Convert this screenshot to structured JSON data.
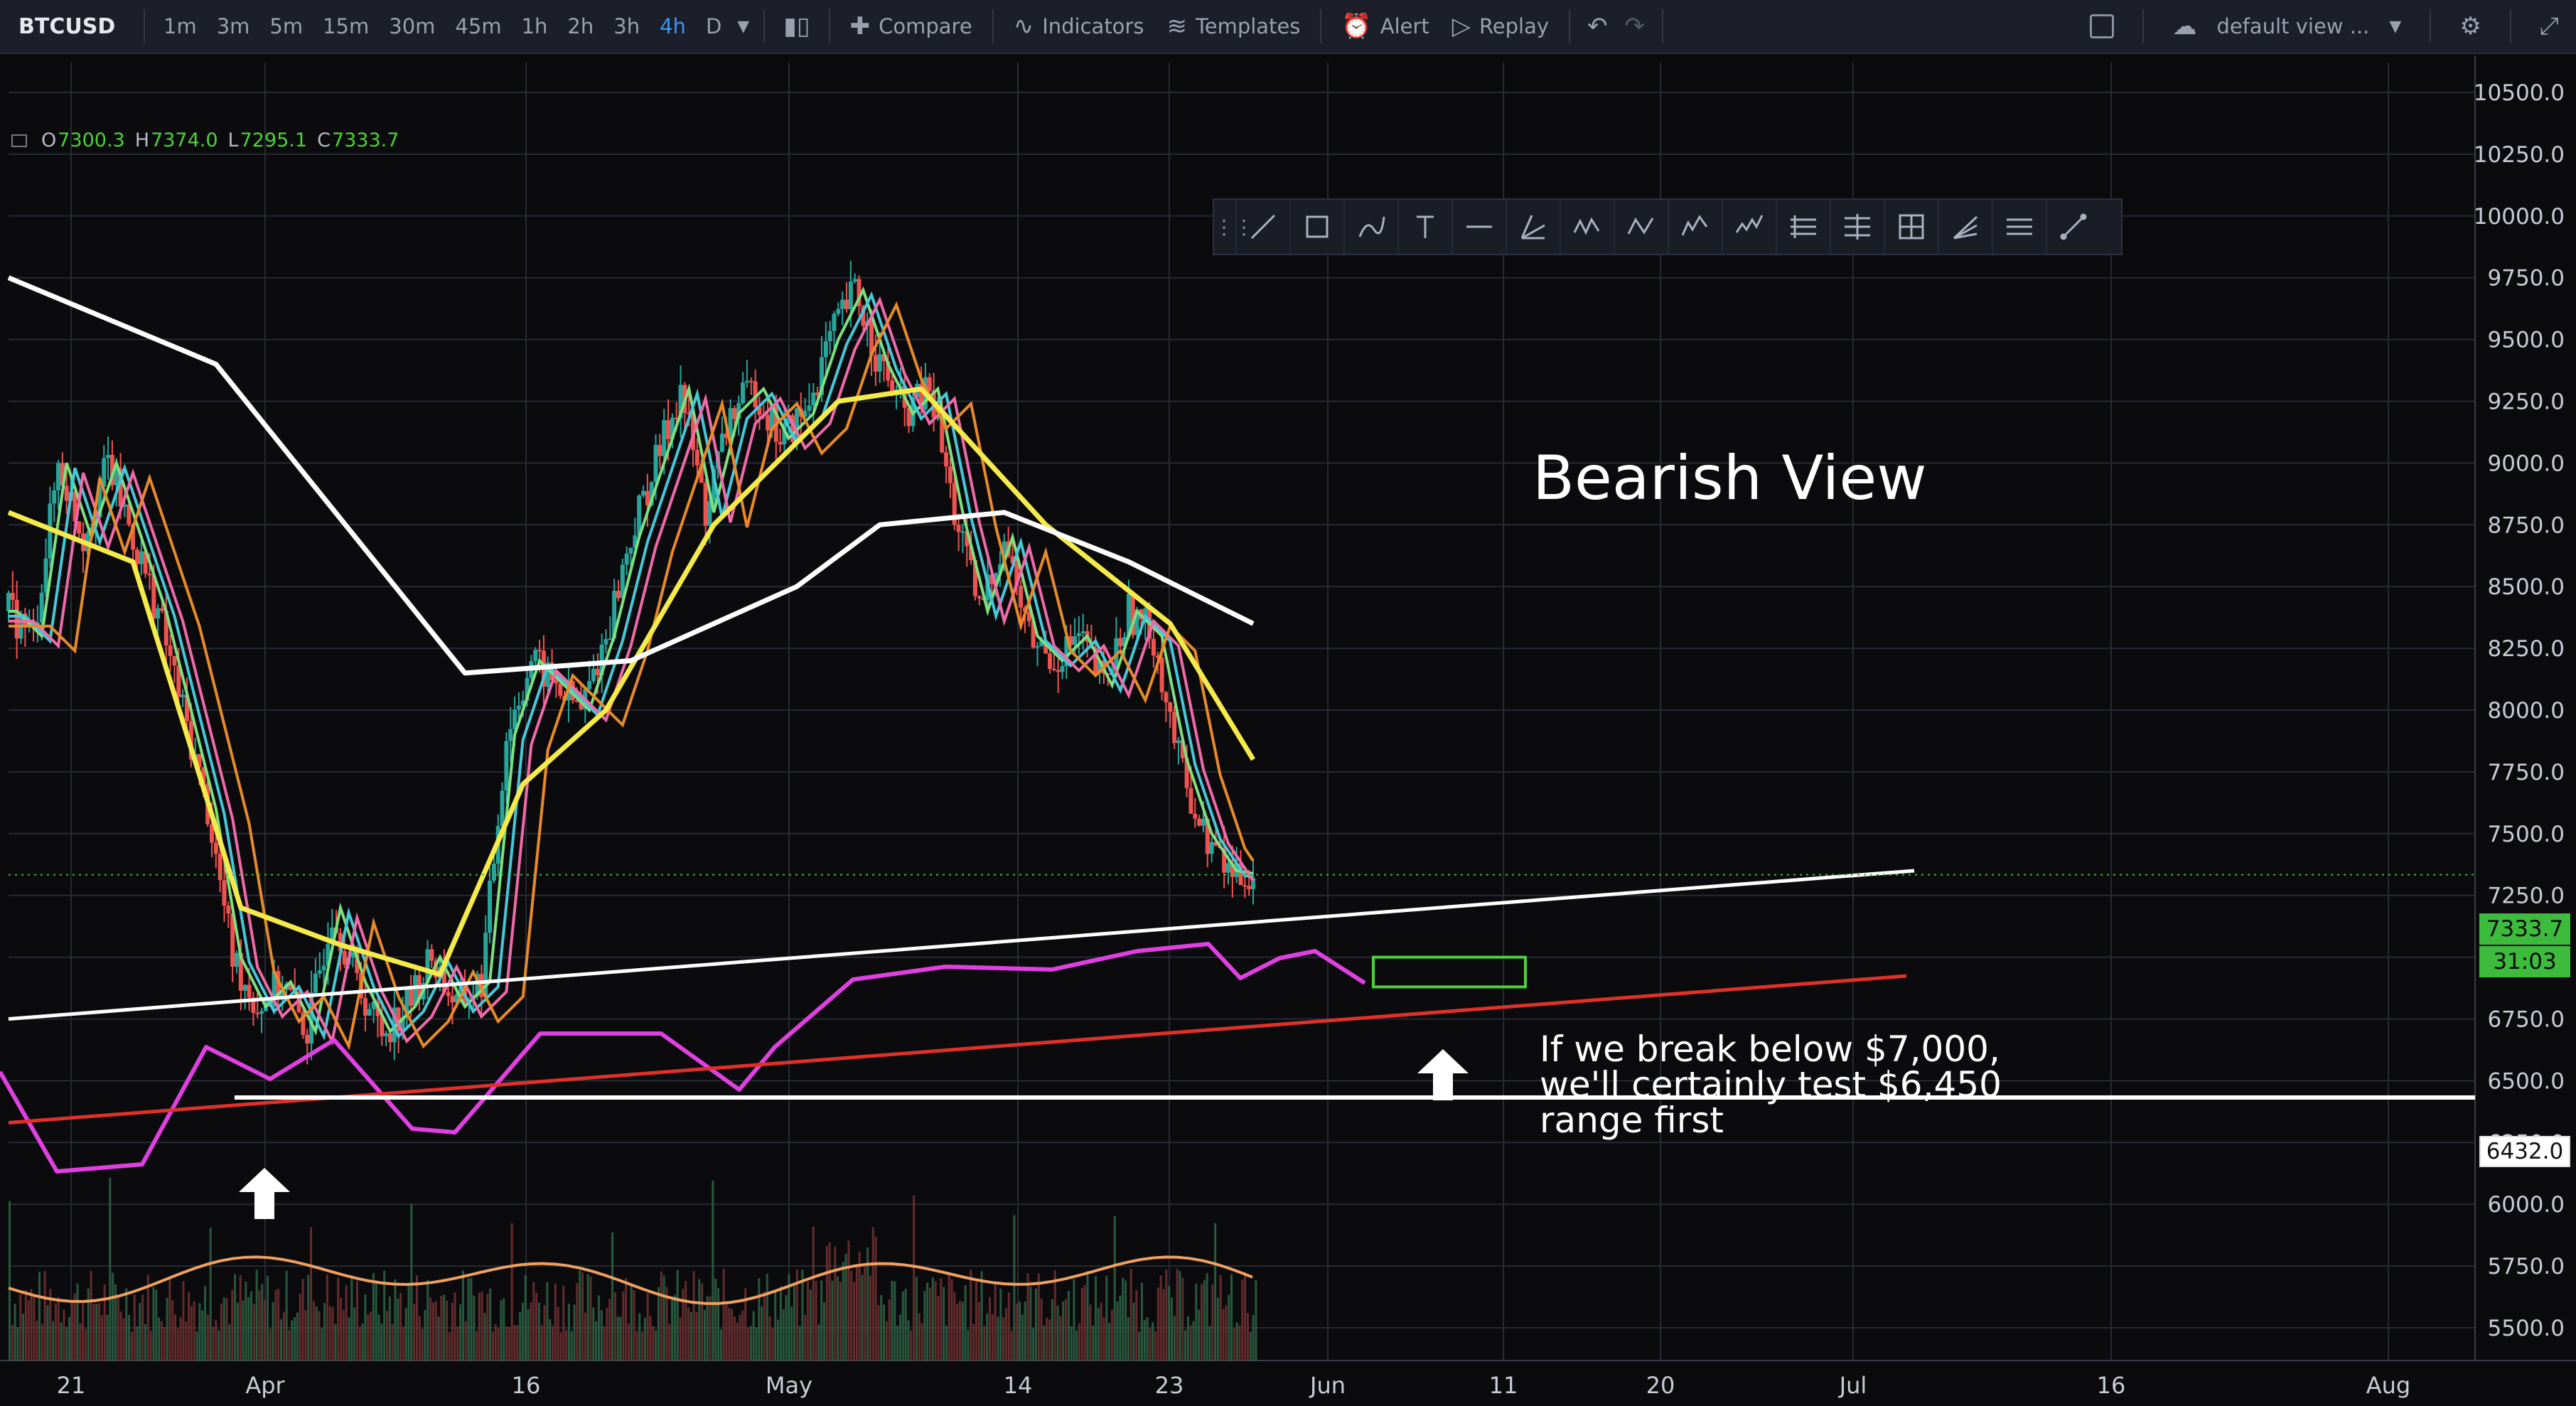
{
  "toolbar": {
    "symbol": "BTCUSD",
    "timeframes": [
      "1m",
      "3m",
      "5m",
      "15m",
      "30m",
      "45m",
      "1h",
      "2h",
      "3h",
      "4h",
      "D"
    ],
    "active_timeframe": "4h",
    "compare_label": "Compare",
    "indicators_label": "Indicators",
    "templates_label": "Templates",
    "alert_label": "Alert",
    "replay_label": "Replay",
    "view_name": "default view ...",
    "icons": [
      "candles-icon",
      "compare-icon",
      "indicators-icon",
      "templates-icon",
      "alert-icon",
      "replay-icon",
      "undo-icon",
      "redo-icon",
      "gear-icon",
      "fullscreen-icon"
    ]
  },
  "ohlc": {
    "open_label": "O",
    "open": "7300.3",
    "high_label": "H",
    "high": "7374.0",
    "low_label": "L",
    "low": "7295.1",
    "close_label": "C",
    "close": "7333.7",
    "color": "#4cd137"
  },
  "drawing_tools": [
    "trend-line",
    "rectangle",
    "brush",
    "text",
    "horizontal-line",
    "fib-fan",
    "xabcd-pattern",
    "abcd-pattern",
    "elliott-wave",
    "three-drives",
    "pitchfork",
    "fib-retracement",
    "measure",
    "gann-fan",
    "fib-extension",
    "ruler"
  ],
  "annotations": {
    "title": "Bearish View",
    "note": "If we break below $7,000,\nwe'll certainly test $6,450\nrange first"
  },
  "price_tags": {
    "last_price": "7333.7",
    "countdown": "31:03",
    "level": "6432.0"
  },
  "colors": {
    "background": "#0b0b0e",
    "grid": "#262a33",
    "ma_white": "#ffffff",
    "ma_yellow": "#f5ea4a",
    "ma_orange": "#e88a2a",
    "ma_pink": "#f06aa8",
    "ma_cyan": "#45c8d8",
    "ma_green": "#7ee07e",
    "oscillator": "#e040e0",
    "support_red": "#e0302a",
    "up_candle": "#26a69a",
    "down_candle": "#ef5350",
    "highlight_box": "#4cd137",
    "volume_ma": "#f0a060"
  },
  "chart_data": {
    "type": "candlestick",
    "symbol": "BTCUSD",
    "interval": "4h",
    "y_ticks": [
      10500,
      10250,
      10000,
      9750,
      9500,
      9250,
      9000,
      8750,
      8500,
      8250,
      8000,
      7750,
      7500,
      7250,
      7000,
      6750,
      6500,
      6250,
      6000,
      5750,
      5500
    ],
    "y_tick_labels": [
      "10500.0",
      "10250.0",
      "10000.0",
      "9750.0",
      "9500.0",
      "9250.0",
      "9000.0",
      "8750.0",
      "8500.0",
      "8250.0",
      "8000.0",
      "7750.0",
      "7500.0",
      "7250.0",
      "7000.0",
      "6750.0",
      "6500.0",
      "6250.0",
      "6000.0",
      "5750.0",
      "5500.0"
    ],
    "ylim": [
      5400,
      10600
    ],
    "x_ticks": [
      "21",
      "Apr",
      "16",
      "May",
      "14",
      "23",
      "Jun",
      "11",
      "20",
      "Jul",
      "16",
      "Aug"
    ],
    "price_path": [
      [
        0,
        8400
      ],
      [
        3,
        8300
      ],
      [
        6,
        9000
      ],
      [
        9,
        8700
      ],
      [
        12,
        9000
      ],
      [
        15,
        8700
      ],
      [
        18,
        8400
      ],
      [
        21,
        8000
      ],
      [
        24,
        7600
      ],
      [
        27,
        7000
      ],
      [
        30,
        6800
      ],
      [
        33,
        6900
      ],
      [
        36,
        6700
      ],
      [
        39,
        7200
      ],
      [
        42,
        6900
      ],
      [
        45,
        6700
      ],
      [
        48,
        6800
      ],
      [
        51,
        7000
      ],
      [
        54,
        6800
      ],
      [
        57,
        6900
      ],
      [
        60,
        7900
      ],
      [
        63,
        8200
      ],
      [
        66,
        8100
      ],
      [
        69,
        8000
      ],
      [
        72,
        8300
      ],
      [
        75,
        8700
      ],
      [
        78,
        9000
      ],
      [
        81,
        9300
      ],
      [
        84,
        8800
      ],
      [
        87,
        9200
      ],
      [
        90,
        9300
      ],
      [
        93,
        9100
      ],
      [
        96,
        9200
      ],
      [
        99,
        9500
      ],
      [
        102,
        9700
      ],
      [
        105,
        9400
      ],
      [
        108,
        9200
      ],
      [
        111,
        9300
      ],
      [
        114,
        8800
      ],
      [
        117,
        8400
      ],
      [
        120,
        8700
      ],
      [
        123,
        8300
      ],
      [
        126,
        8200
      ],
      [
        129,
        8300
      ],
      [
        132,
        8100
      ],
      [
        135,
        8400
      ],
      [
        138,
        8300
      ],
      [
        141,
        7800
      ],
      [
        144,
        7500
      ],
      [
        147,
        7350
      ],
      [
        150,
        7333.7
      ]
    ],
    "moving_averages": {
      "white_long": [
        [
          0,
          9750
        ],
        [
          25,
          9400
        ],
        [
          55,
          8150
        ],
        [
          75,
          8200
        ],
        [
          95,
          8500
        ],
        [
          105,
          8750
        ],
        [
          120,
          8800
        ],
        [
          135,
          8600
        ],
        [
          150,
          8350
        ]
      ],
      "yellow": [
        [
          0,
          8800
        ],
        [
          15,
          8600
        ],
        [
          28,
          7200
        ],
        [
          40,
          7050
        ],
        [
          52,
          6930
        ],
        [
          62,
          7700
        ],
        [
          72,
          8000
        ],
        [
          85,
          8750
        ],
        [
          100,
          9250
        ],
        [
          110,
          9300
        ],
        [
          125,
          8750
        ],
        [
          140,
          8350
        ],
        [
          150,
          7800
        ]
      ]
    },
    "support_line_white": {
      "from": [
        0,
        6750
      ],
      "to": [
        230,
        7560
      ]
    },
    "support_line_red": {
      "from": [
        0,
        6330
      ],
      "to": [
        230,
        7140
      ]
    },
    "horizontal_level": 6432.0,
    "highlight_range": [
      6920,
      7000
    ],
    "last_price": 7333.7
  }
}
